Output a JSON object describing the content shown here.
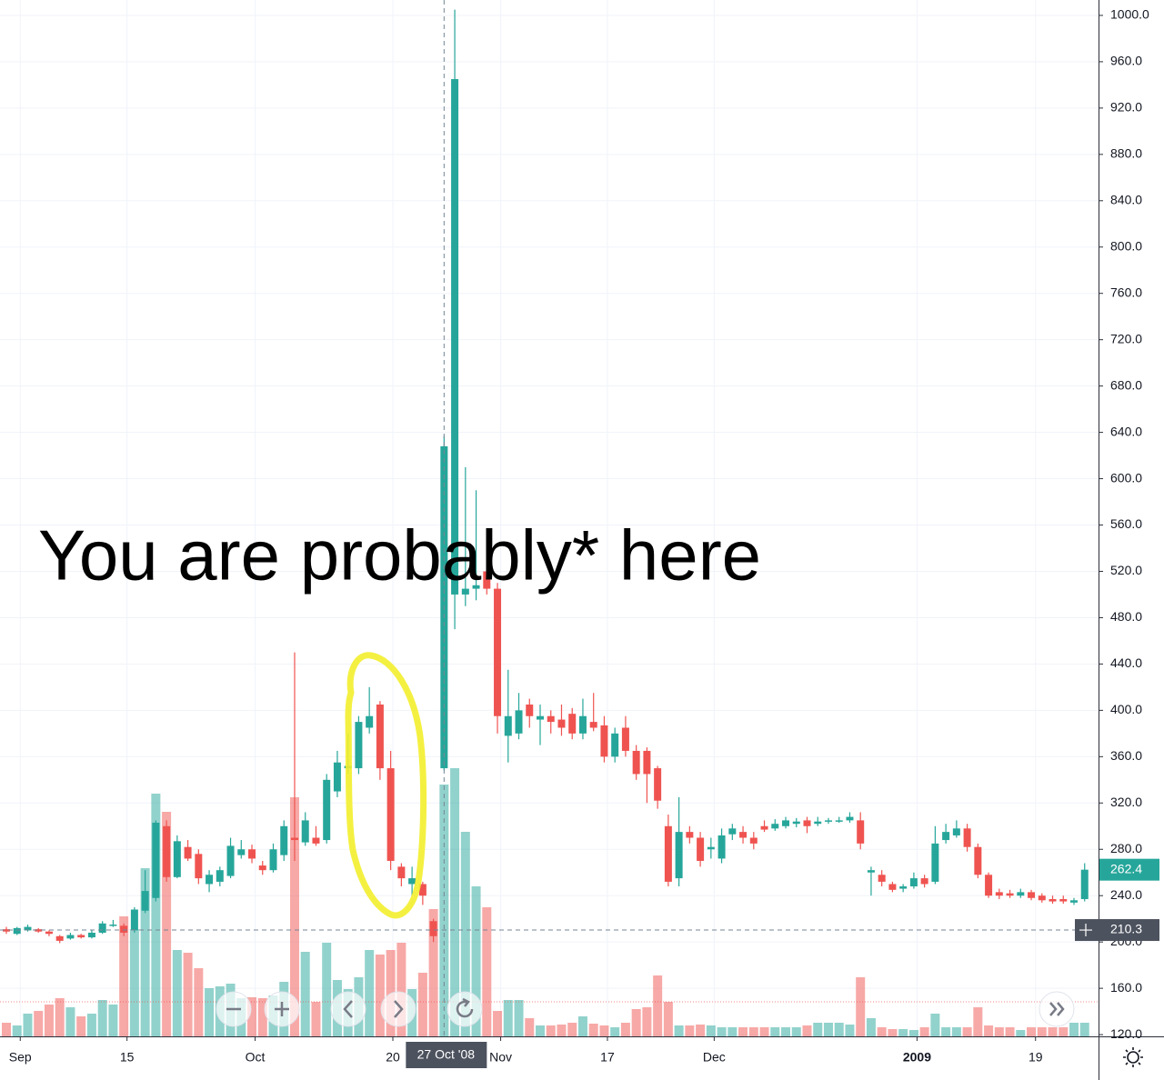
{
  "chart_data": {
    "type": "candlestick",
    "annotation": "You are probably* here",
    "up_color": "#26a69a",
    "down_color": "#ef5350",
    "grid": true,
    "ylim": [
      118.5,
      1013.3
    ],
    "yticks": [
      {
        "value": 120,
        "label": "120.0"
      },
      {
        "value": 160,
        "label": "160.0"
      },
      {
        "value": 200,
        "label": "200.0"
      },
      {
        "value": 240,
        "label": "240.0"
      },
      {
        "value": 280,
        "label": "280.0"
      },
      {
        "value": 320,
        "label": "320.0"
      },
      {
        "value": 360,
        "label": "360.0"
      },
      {
        "value": 400,
        "label": "400.0"
      },
      {
        "value": 440,
        "label": "440.0"
      },
      {
        "value": 480,
        "label": "480.0"
      },
      {
        "value": 520,
        "label": "520.0"
      },
      {
        "value": 560,
        "label": "560.0"
      },
      {
        "value": 600,
        "label": "600.0"
      },
      {
        "value": 640,
        "label": "640.0"
      },
      {
        "value": 680,
        "label": "680.0"
      },
      {
        "value": 720,
        "label": "720.0"
      },
      {
        "value": 760,
        "label": "760.0"
      },
      {
        "value": 800,
        "label": "800.0"
      },
      {
        "value": 840,
        "label": "840.0"
      },
      {
        "value": 880,
        "label": "880.0"
      },
      {
        "value": 920,
        "label": "920.0"
      },
      {
        "value": 960,
        "label": "960.0"
      },
      {
        "value": 1000,
        "label": "1000.0"
      }
    ],
    "xticks": [
      {
        "value": 1.3,
        "label": "Sep"
      },
      {
        "value": 11.3,
        "label": "15"
      },
      {
        "value": 23.3,
        "label": "Oct"
      },
      {
        "value": 36.2,
        "label": "20"
      },
      {
        "value": 46.3,
        "label": "Nov"
      },
      {
        "value": 56.3,
        "label": "17"
      },
      {
        "value": 66.3,
        "label": "Dec"
      },
      {
        "value": 85.3,
        "label": "2009"
      },
      {
        "value": 96.4,
        "label": "19"
      }
    ],
    "open": [
      211,
      207,
      210,
      211,
      209,
      205,
      203,
      206,
      204,
      208,
      214,
      214,
      210,
      227,
      238,
      300,
      256,
      282,
      276,
      250,
      252,
      257,
      275,
      280,
      266,
      262,
      275,
      290,
      286,
      290,
      288,
      330,
      350,
      350,
      385,
      405,
      350,
      265,
      250,
      250,
      218,
      350,
      500,
      500,
      505,
      520,
      505,
      378,
      380,
      405,
      392,
      395,
      392,
      397,
      380,
      390,
      387,
      360,
      385,
      365,
      365,
      350,
      300,
      255,
      295,
      290,
      280,
      272,
      293,
      295,
      290,
      300,
      298,
      300,
      302,
      305,
      302,
      304,
      304,
      305,
      305,
      260,
      258,
      250,
      246,
      248,
      255,
      252,
      288,
      292,
      298,
      282,
      258,
      243,
      242,
      240,
      243,
      240,
      237,
      237,
      234,
      237
    ],
    "high": [
      213,
      213,
      215,
      212,
      210,
      206,
      208,
      207,
      210,
      218,
      219,
      216,
      230,
      262,
      305,
      305,
      292,
      288,
      280,
      262,
      265,
      290,
      288,
      284,
      270,
      285,
      305,
      450,
      312,
      300,
      345,
      365,
      380,
      395,
      420,
      408,
      365,
      268,
      265,
      252,
      220,
      637,
      1005,
      610,
      590,
      550,
      510,
      435,
      415,
      410,
      405,
      400,
      405,
      402,
      410,
      415,
      395,
      385,
      395,
      370,
      368,
      352,
      310,
      325,
      300,
      295,
      290,
      298,
      302,
      300,
      295,
      305,
      306,
      308,
      307,
      308,
      308,
      307,
      308,
      312,
      312,
      265,
      262,
      252,
      250,
      260,
      258,
      300,
      302,
      305,
      302,
      285,
      260,
      246,
      245,
      246,
      245,
      242,
      240,
      240,
      238,
      268
    ],
    "low": [
      207,
      206,
      209,
      208,
      205,
      199,
      202,
      203,
      203,
      207,
      213,
      205,
      208,
      225,
      235,
      252,
      255,
      270,
      250,
      243,
      248,
      255,
      272,
      268,
      258,
      260,
      270,
      270,
      283,
      283,
      285,
      325,
      345,
      345,
      380,
      340,
      262,
      248,
      240,
      232,
      200,
      348,
      470,
      490,
      495,
      500,
      380,
      355,
      375,
      385,
      370,
      380,
      378,
      375,
      375,
      382,
      355,
      355,
      360,
      340,
      320,
      315,
      248,
      248,
      285,
      265,
      272,
      268,
      288,
      285,
      280,
      295,
      296,
      298,
      299,
      294,
      300,
      302,
      303,
      303,
      280,
      240,
      248,
      243,
      243,
      246,
      247,
      250,
      285,
      290,
      278,
      255,
      238,
      237,
      238,
      238,
      236,
      234,
      233,
      233,
      232,
      235
    ],
    "close": [
      209,
      212,
      213,
      209,
      207,
      201,
      206,
      204,
      208,
      216,
      215,
      208,
      228,
      244,
      303,
      256,
      287,
      272,
      255,
      258,
      262,
      283,
      280,
      272,
      262,
      280,
      300,
      288,
      305,
      285,
      340,
      355,
      352,
      390,
      395,
      350,
      270,
      255,
      255,
      240,
      205,
      628,
      945,
      505,
      508,
      505,
      395,
      395,
      400,
      395,
      395,
      390,
      385,
      380,
      395,
      385,
      360,
      380,
      365,
      345,
      345,
      322,
      252,
      295,
      290,
      270,
      282,
      292,
      298,
      290,
      285,
      297,
      302,
      305,
      304,
      300,
      304,
      305,
      305,
      308,
      285,
      262,
      252,
      245,
      248,
      255,
      250,
      285,
      295,
      298,
      282,
      258,
      240,
      240,
      240,
      243,
      238,
      236,
      235,
      235,
      236,
      262.4
    ],
    "volume": [
      15,
      12,
      25,
      28,
      35,
      42,
      32,
      22,
      25,
      40,
      35,
      132,
      118,
      185,
      267,
      247,
      95,
      92,
      75,
      53,
      55,
      58,
      42,
      43,
      42,
      45,
      60,
      263,
      93,
      38,
      103,
      62,
      52,
      65,
      95,
      90,
      95,
      103,
      52,
      70,
      140,
      277,
      295,
      225,
      165,
      142,
      28,
      40,
      40,
      20,
      12,
      12,
      13,
      15,
      22,
      14,
      12,
      10,
      15,
      30,
      32,
      67,
      38,
      12,
      12,
      13,
      12,
      10,
      10,
      10,
      10,
      10,
      10,
      10,
      10,
      12,
      15,
      15,
      15,
      13,
      65,
      20,
      10,
      8,
      8,
      7,
      10,
      25,
      10,
      10,
      10,
      32,
      12,
      10,
      10,
      7,
      10,
      10,
      10,
      10,
      15,
      15
    ],
    "last_price": 262.4,
    "crosshair_price": 210.3,
    "crosshair_index": 41,
    "crosshair_date": "27 Oct '08"
  }
}
